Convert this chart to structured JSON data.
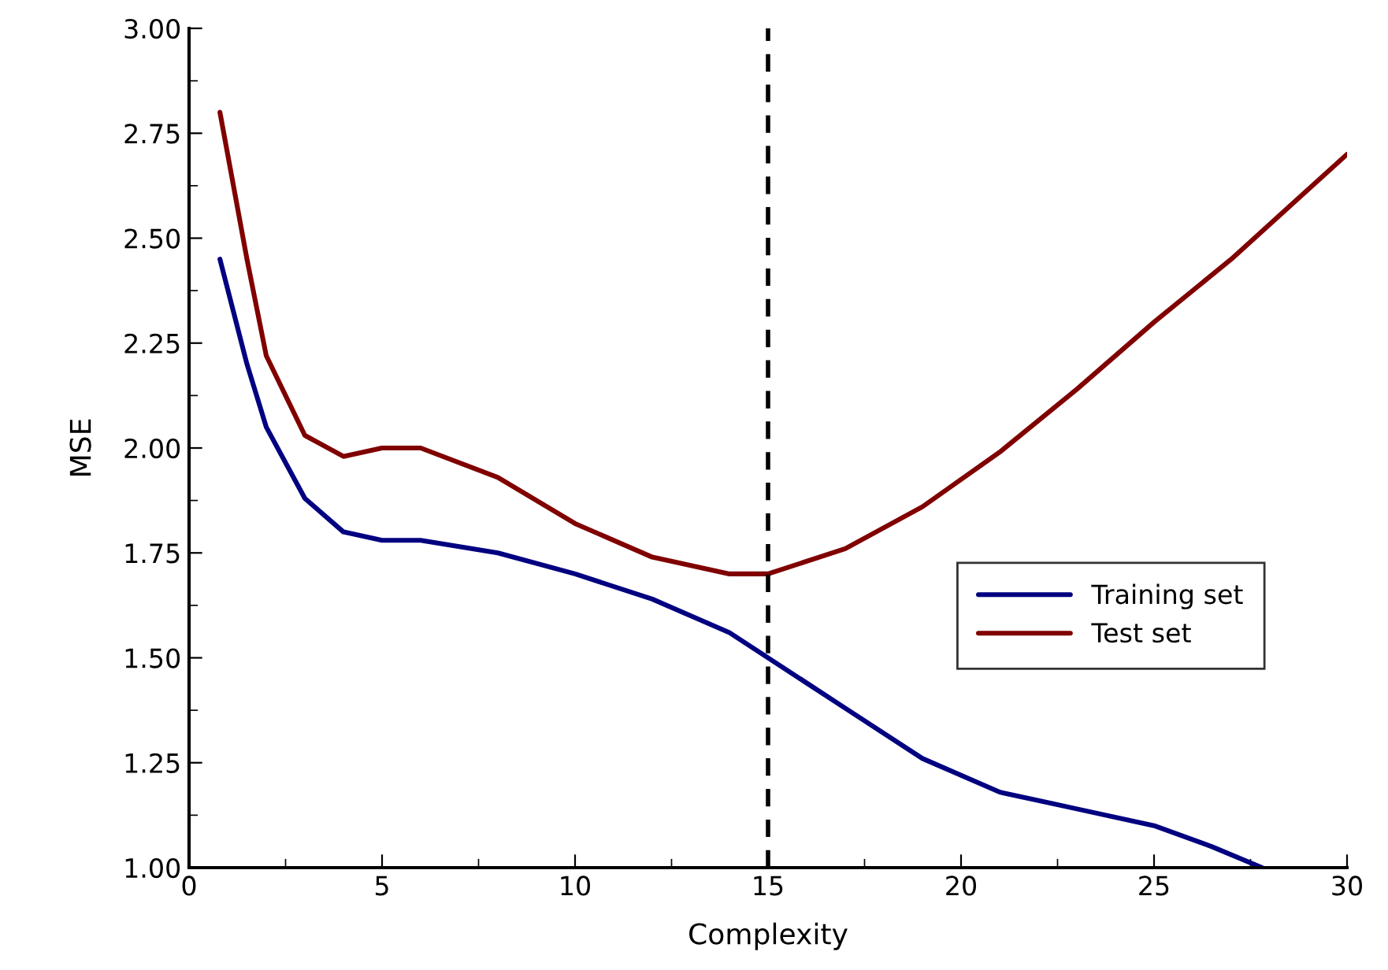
{
  "chart_data": {
    "type": "line",
    "xlabel": "Complexity",
    "ylabel": "MSE",
    "xlim": [
      0,
      30
    ],
    "xticks": [
      0,
      5,
      10,
      15,
      20,
      25,
      30
    ],
    "ylim": [
      1.0,
      3.0
    ],
    "yticks": [
      {
        "value": 1.0,
        "label": "1.00"
      },
      {
        "value": 1.25,
        "label": "1.25"
      },
      {
        "value": 1.5,
        "label": "1.50"
      },
      {
        "value": 1.75,
        "label": "1.75"
      },
      {
        "value": 2.0,
        "label": "2.00"
      },
      {
        "value": 2.25,
        "label": "2.25"
      },
      {
        "value": 2.5,
        "label": "2.50"
      },
      {
        "value": 2.75,
        "label": "2.75"
      },
      {
        "value": 3.0,
        "label": "3.00"
      }
    ],
    "grid": false,
    "legend": "right",
    "line_style": "solid",
    "series": [
      {
        "name": "Training set",
        "color": "#000080",
        "x": [
          0.8,
          1.5,
          2,
          3,
          4,
          5,
          6,
          8,
          10,
          12,
          14,
          15,
          17,
          19,
          21,
          23,
          25,
          26.5,
          27.8
        ],
        "values": [
          2.45,
          2.2,
          2.05,
          1.88,
          1.8,
          1.78,
          1.78,
          1.75,
          1.7,
          1.64,
          1.56,
          1.5,
          1.38,
          1.26,
          1.18,
          1.14,
          1.1,
          1.05,
          1.0
        ]
      },
      {
        "name": "Test set",
        "color": "#800000",
        "x": [
          0.8,
          1.5,
          2,
          3,
          4,
          5,
          6,
          8,
          10,
          12,
          14,
          15,
          17,
          19,
          21,
          23,
          25,
          27,
          30
        ],
        "values": [
          2.8,
          2.45,
          2.22,
          2.03,
          1.98,
          2.0,
          2.0,
          1.93,
          1.82,
          1.74,
          1.7,
          1.7,
          1.76,
          1.86,
          1.99,
          2.14,
          2.3,
          2.45,
          2.7
        ]
      }
    ],
    "ref_lines": [
      {
        "axis": "x",
        "value": 15,
        "color": "#000000",
        "line_style": "dashed"
      }
    ]
  }
}
